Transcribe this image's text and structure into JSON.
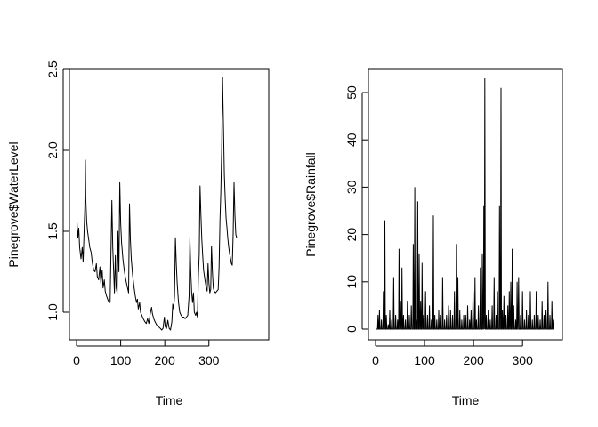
{
  "chart_data": [
    {
      "type": "line",
      "title": "",
      "xlabel": "Time",
      "ylabel": "Pinegrove$WaterLevel",
      "xlim": [
        0,
        365
      ],
      "ylim": [
        0.85,
        2.5
      ],
      "x_ticks": [
        "0",
        "100",
        "200",
        "300"
      ],
      "y_ticks": [
        "1.0",
        "1.5",
        "2.0",
        "2.5"
      ],
      "grid": false,
      "legend": "none",
      "series_color": "#000000",
      "series": [
        {
          "points": [
            [
              1,
              1.56
            ],
            [
              3,
              1.46
            ],
            [
              5,
              1.52
            ],
            [
              7,
              1.4
            ],
            [
              10,
              1.33
            ],
            [
              13,
              1.4
            ],
            [
              15,
              1.31
            ],
            [
              17,
              1.48
            ],
            [
              19,
              1.66
            ],
            [
              20,
              1.94
            ],
            [
              21,
              1.7
            ],
            [
              23,
              1.56
            ],
            [
              25,
              1.5
            ],
            [
              27,
              1.46
            ],
            [
              30,
              1.4
            ],
            [
              33,
              1.37
            ],
            [
              36,
              1.3
            ],
            [
              39,
              1.26
            ],
            [
              42,
              1.25
            ],
            [
              45,
              1.3
            ],
            [
              47,
              1.22
            ],
            [
              50,
              1.2
            ],
            [
              53,
              1.28
            ],
            [
              55,
              1.18
            ],
            [
              58,
              1.26
            ],
            [
              60,
              1.15
            ],
            [
              63,
              1.2
            ],
            [
              65,
              1.13
            ],
            [
              68,
              1.1
            ],
            [
              72,
              1.07
            ],
            [
              76,
              1.06
            ],
            [
              80,
              1.69
            ],
            [
              82,
              1.4
            ],
            [
              84,
              1.25
            ],
            [
              86,
              1.12
            ],
            [
              88,
              1.35
            ],
            [
              90,
              1.15
            ],
            [
              92,
              1.12
            ],
            [
              94,
              1.5
            ],
            [
              96,
              1.25
            ],
            [
              98,
              1.8
            ],
            [
              100,
              1.55
            ],
            [
              102,
              1.43
            ],
            [
              105,
              1.33
            ],
            [
              108,
              1.26
            ],
            [
              111,
              1.21
            ],
            [
              114,
              1.17
            ],
            [
              118,
              1.12
            ],
            [
              120,
              1.67
            ],
            [
              122,
              1.45
            ],
            [
              124,
              1.33
            ],
            [
              127,
              1.23
            ],
            [
              130,
              1.16
            ],
            [
              133,
              1.1
            ],
            [
              136,
              1.06
            ],
            [
              138,
              1.08
            ],
            [
              140,
              1.02
            ],
            [
              143,
              1.06
            ],
            [
              145,
              1.0
            ],
            [
              148,
              0.98
            ],
            [
              151,
              0.96
            ],
            [
              155,
              0.94
            ],
            [
              158,
              0.93
            ],
            [
              161,
              0.96
            ],
            [
              164,
              0.93
            ],
            [
              167,
              0.99
            ],
            [
              170,
              1.03
            ],
            [
              172,
              0.99
            ],
            [
              175,
              0.96
            ],
            [
              178,
              0.94
            ],
            [
              182,
              0.92
            ],
            [
              186,
              0.91
            ],
            [
              190,
              0.9
            ],
            [
              193,
              0.89
            ],
            [
              196,
              0.9
            ],
            [
              199,
              0.97
            ],
            [
              201,
              0.91
            ],
            [
              204,
              0.9
            ],
            [
              207,
              0.95
            ],
            [
              210,
              0.9
            ],
            [
              213,
              0.89
            ],
            [
              216,
              0.94
            ],
            [
              218,
              1.05
            ],
            [
              220,
              1.02
            ],
            [
              222,
              1.1
            ],
            [
              224,
              1.46
            ],
            [
              226,
              1.3
            ],
            [
              228,
              1.18
            ],
            [
              231,
              1.06
            ],
            [
              234,
              1.0
            ],
            [
              237,
              0.98
            ],
            [
              240,
              0.97
            ],
            [
              243,
              0.97
            ],
            [
              246,
              0.96
            ],
            [
              249,
              0.97
            ],
            [
              252,
              0.98
            ],
            [
              255,
              1.1
            ],
            [
              257,
              1.46
            ],
            [
              259,
              1.25
            ],
            [
              261,
              1.12
            ],
            [
              263,
              1.06
            ],
            [
              265,
              1.12
            ],
            [
              267,
              1.0
            ],
            [
              270,
              0.98
            ],
            [
              272,
              1.0
            ],
            [
              274,
              0.97
            ],
            [
              276,
              1.22
            ],
            [
              278,
              1.36
            ],
            [
              280,
              1.78
            ],
            [
              282,
              1.6
            ],
            [
              284,
              1.45
            ],
            [
              286,
              1.35
            ],
            [
              288,
              1.26
            ],
            [
              291,
              1.2
            ],
            [
              294,
              1.15
            ],
            [
              296,
              1.13
            ],
            [
              298,
              1.3
            ],
            [
              300,
              1.18
            ],
            [
              302,
              1.12
            ],
            [
              304,
              1.14
            ],
            [
              306,
              1.41
            ],
            [
              308,
              1.25
            ],
            [
              310,
              1.15
            ],
            [
              312,
              1.13
            ],
            [
              315,
              1.12
            ],
            [
              318,
              1.13
            ],
            [
              321,
              1.14
            ],
            [
              323,
              1.28
            ],
            [
              325,
              1.57
            ],
            [
              327,
              1.75
            ],
            [
              329,
              2.0
            ],
            [
              331,
              2.45
            ],
            [
              333,
              2.15
            ],
            [
              335,
              1.85
            ],
            [
              337,
              1.7
            ],
            [
              339,
              1.58
            ],
            [
              341,
              1.52
            ],
            [
              343,
              1.45
            ],
            [
              345,
              1.4
            ],
            [
              347,
              1.36
            ],
            [
              349,
              1.33
            ],
            [
              351,
              1.3
            ],
            [
              353,
              1.29
            ],
            [
              355,
              1.48
            ],
            [
              357,
              1.8
            ],
            [
              359,
              1.6
            ],
            [
              361,
              1.48
            ],
            [
              363,
              1.46
            ]
          ]
        }
      ]
    },
    {
      "type": "line",
      "title": "",
      "xlabel": "Time",
      "ylabel": "Pinegrove$Rainfall",
      "xlim": [
        0,
        365
      ],
      "ylim": [
        0,
        53
      ],
      "x_ticks": [
        "0",
        "100",
        "200",
        "300"
      ],
      "y_ticks": [
        "0",
        "10",
        "20",
        "30",
        "40",
        "50"
      ],
      "grid": false,
      "legend": "none",
      "series_color": "#000000",
      "spikes": [
        [
          5,
          3
        ],
        [
          8,
          4
        ],
        [
          12,
          2
        ],
        [
          16,
          8
        ],
        [
          19,
          23
        ],
        [
          22,
          3
        ],
        [
          26,
          1
        ],
        [
          29,
          4
        ],
        [
          33,
          2
        ],
        [
          37,
          11
        ],
        [
          41,
          3
        ],
        [
          45,
          2
        ],
        [
          48,
          17
        ],
        [
          51,
          6
        ],
        [
          54,
          13
        ],
        [
          57,
          3
        ],
        [
          61,
          2
        ],
        [
          65,
          6
        ],
        [
          69,
          3
        ],
        [
          73,
          5
        ],
        [
          77,
          18
        ],
        [
          80,
          30
        ],
        [
          83,
          2
        ],
        [
          86,
          27
        ],
        [
          89,
          16
        ],
        [
          92,
          6
        ],
        [
          95,
          14
        ],
        [
          98,
          3
        ],
        [
          102,
          8
        ],
        [
          106,
          3
        ],
        [
          110,
          5
        ],
        [
          114,
          2
        ],
        [
          118,
          24
        ],
        [
          121,
          3
        ],
        [
          125,
          2
        ],
        [
          129,
          4
        ],
        [
          133,
          3
        ],
        [
          137,
          11
        ],
        [
          141,
          2
        ],
        [
          145,
          3
        ],
        [
          149,
          5
        ],
        [
          153,
          4
        ],
        [
          157,
          3
        ],
        [
          161,
          8
        ],
        [
          165,
          18
        ],
        [
          168,
          11
        ],
        [
          172,
          4
        ],
        [
          176,
          2
        ],
        [
          180,
          3
        ],
        [
          184,
          3
        ],
        [
          188,
          5
        ],
        [
          192,
          2
        ],
        [
          195,
          4
        ],
        [
          199,
          8
        ],
        [
          203,
          11
        ],
        [
          206,
          2
        ],
        [
          210,
          5
        ],
        [
          214,
          13
        ],
        [
          218,
          16
        ],
        [
          221,
          26
        ],
        [
          223,
          53
        ],
        [
          226,
          3
        ],
        [
          230,
          4
        ],
        [
          234,
          2
        ],
        [
          238,
          5
        ],
        [
          242,
          11
        ],
        [
          246,
          3
        ],
        [
          249,
          8
        ],
        [
          253,
          26
        ],
        [
          256,
          51
        ],
        [
          259,
          4
        ],
        [
          262,
          7
        ],
        [
          266,
          3
        ],
        [
          270,
          5
        ],
        [
          273,
          8
        ],
        [
          276,
          10
        ],
        [
          279,
          17
        ],
        [
          282,
          5
        ],
        [
          286,
          2
        ],
        [
          289,
          10
        ],
        [
          292,
          11
        ],
        [
          296,
          3
        ],
        [
          300,
          8
        ],
        [
          304,
          2
        ],
        [
          308,
          4
        ],
        [
          312,
          3
        ],
        [
          316,
          8
        ],
        [
          320,
          2
        ],
        [
          324,
          3
        ],
        [
          328,
          8
        ],
        [
          332,
          3
        ],
        [
          336,
          2
        ],
        [
          340,
          6
        ],
        [
          344,
          3
        ],
        [
          348,
          4
        ],
        [
          352,
          10
        ],
        [
          356,
          3
        ],
        [
          360,
          6
        ],
        [
          363,
          2
        ]
      ]
    }
  ]
}
